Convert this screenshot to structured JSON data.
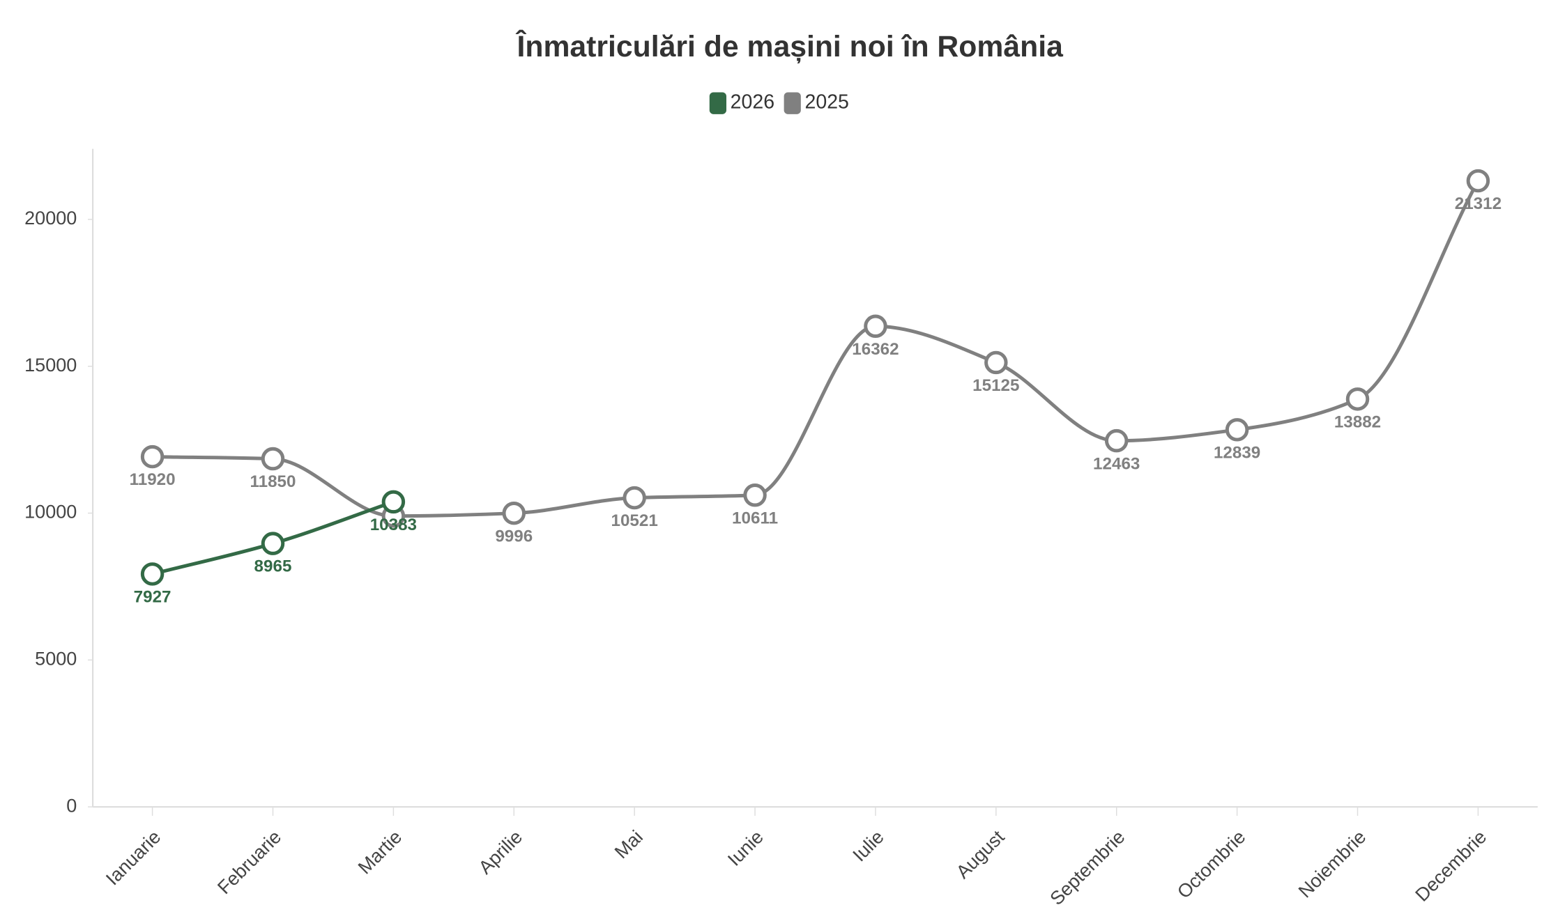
{
  "chart_data": {
    "type": "line",
    "title": "Înmatriculări de mașini noi în România",
    "categories": [
      "Ianuarie",
      "Februarie",
      "Martie",
      "Aprilie",
      "Mai",
      "Iunie",
      "Iulie",
      "August",
      "Septembrie",
      "Octombrie",
      "Noiembrie",
      "Decembrie"
    ],
    "series": [
      {
        "name": "2026",
        "color": "#336a46",
        "values": [
          7927,
          8965,
          10383,
          null,
          null,
          null,
          null,
          null,
          null,
          null,
          null,
          null
        ]
      },
      {
        "name": "2025",
        "color": "#808080",
        "values": [
          11920,
          11850,
          9900,
          9996,
          10521,
          10611,
          16362,
          15125,
          12463,
          12839,
          13882,
          21312
        ]
      }
    ],
    "ylim": [
      0,
      22400
    ],
    "yticks": [
      0,
      5000,
      10000,
      15000,
      20000
    ],
    "legend": "top"
  }
}
